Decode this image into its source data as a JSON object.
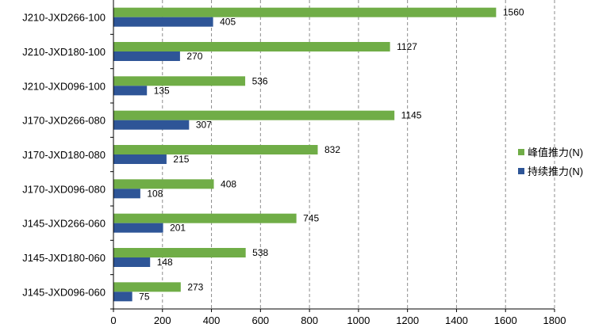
{
  "chart_data": {
    "type": "bar",
    "orientation": "horizontal",
    "categories": [
      "J210-JXD266-100",
      "J210-JXD180-100",
      "J210-JXD096-100",
      "J170-JXD266-080",
      "J170-JXD180-080",
      "J170-JXD096-080",
      "J145-JXD266-060",
      "J145-JXD180-060",
      "J145-JXD096-060"
    ],
    "series": [
      {
        "name": "峰值推力(N)",
        "color": "#70ad47",
        "values": [
          1560,
          1127,
          536,
          1145,
          832,
          408,
          745,
          538,
          273
        ]
      },
      {
        "name": "持续推力(N)",
        "color": "#2e5597",
        "values": [
          405,
          270,
          135,
          307,
          215,
          108,
          201,
          148,
          75
        ]
      }
    ],
    "xlim": [
      0,
      1800
    ],
    "xticks": [
      "0",
      "200",
      "400",
      "600",
      "800",
      "1000",
      "1200",
      "1400",
      "1600",
      "1800"
    ],
    "grid": "vertical dashed",
    "legend_position": "right",
    "data_labels": true
  }
}
